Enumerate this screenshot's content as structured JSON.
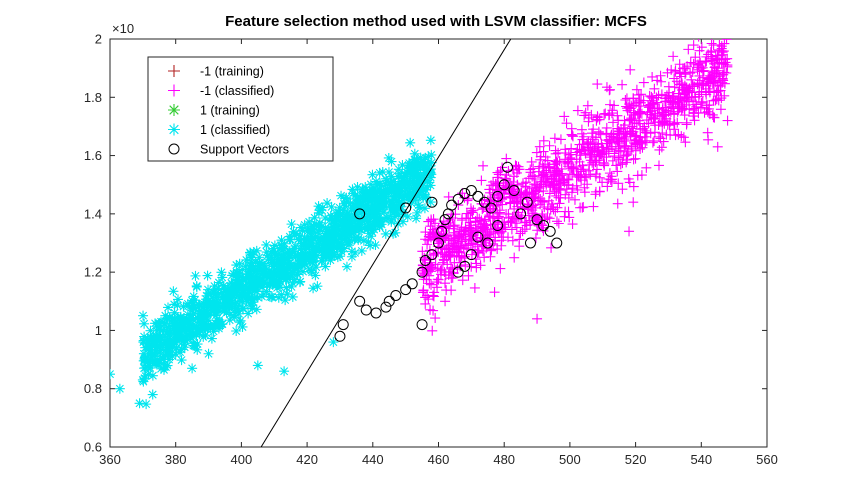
{
  "chart_data": {
    "type": "scatter",
    "title": "Feature selection method used with LSVM classifier: MCFS",
    "xlabel": "",
    "ylabel": "",
    "y_exponent_label": "×10",
    "xlim": [
      360,
      560
    ],
    "ylim": [
      0.6,
      2.0
    ],
    "xticks": [
      "360",
      "380",
      "400",
      "420",
      "440",
      "460",
      "480",
      "500",
      "520",
      "540",
      "560"
    ],
    "yticks": [
      "0.6",
      "0.8",
      "1",
      "1.2",
      "1.4",
      "1.6",
      "1.8",
      "2"
    ],
    "grid": false,
    "legend_position": "top-left",
    "series": [
      {
        "name": "-1 (training)",
        "marker": "plus",
        "color": "#B22222",
        "points": []
      },
      {
        "name": "-1 (classified)",
        "marker": "plus",
        "color": "#FF00FF",
        "cloud": {
          "x_range": [
            455,
            548
          ],
          "slope": 0.0072,
          "intercept": -2.05,
          "spread": 0.075,
          "count": 1300
        },
        "points": [
          [
            540,
            1.9
          ],
          [
            535,
            1.84
          ],
          [
            528,
            1.81
          ],
          [
            542,
            1.75
          ],
          [
            544,
            1.73
          ],
          [
            548,
            1.72
          ],
          [
            545,
            1.63
          ],
          [
            530,
            1.75
          ],
          [
            521,
            1.77
          ],
          [
            518,
            1.34
          ],
          [
            512,
            1.74
          ],
          [
            462,
            1.1
          ],
          [
            490,
            1.04
          ]
        ]
      },
      {
        "name": "1 (training)",
        "marker": "asterisk",
        "color": "#33CC33",
        "points": []
      },
      {
        "name": "1 (classified)",
        "marker": "asterisk",
        "color": "#00E5EE",
        "cloud": {
          "x_range": [
            370,
            458
          ],
          "slope": 0.0072,
          "intercept": -1.75,
          "spread": 0.05,
          "count": 1300
        },
        "points": [
          [
            360,
            0.85
          ],
          [
            363,
            0.8
          ],
          [
            369,
            0.75
          ],
          [
            373,
            0.78
          ],
          [
            372,
            0.88
          ],
          [
            374,
            0.98
          ],
          [
            378,
            0.9
          ],
          [
            370,
            0.83
          ],
          [
            385,
            0.87
          ],
          [
            390,
            0.92
          ],
          [
            405,
            0.88
          ],
          [
            413,
            0.86
          ],
          [
            416,
            1.22
          ],
          [
            428,
            0.96
          ],
          [
            403,
            1.25
          ],
          [
            432,
            1.44
          ],
          [
            442,
            1.46
          ],
          [
            448,
            1.48
          ]
        ]
      },
      {
        "name": "Support Vectors",
        "marker": "circle",
        "color": "#000000",
        "points": [
          [
            430,
            0.98
          ],
          [
            431,
            1.02
          ],
          [
            436,
            1.1
          ],
          [
            438,
            1.07
          ],
          [
            441,
            1.06
          ],
          [
            444,
            1.08
          ],
          [
            445,
            1.1
          ],
          [
            447,
            1.12
          ],
          [
            450,
            1.14
          ],
          [
            452,
            1.16
          ],
          [
            455,
            1.02
          ],
          [
            455,
            1.2
          ],
          [
            456,
            1.24
          ],
          [
            458,
            1.26
          ],
          [
            460,
            1.3
          ],
          [
            461,
            1.34
          ],
          [
            462,
            1.38
          ],
          [
            463,
            1.4
          ],
          [
            464,
            1.43
          ],
          [
            466,
            1.45
          ],
          [
            468,
            1.47
          ],
          [
            470,
            1.48
          ],
          [
            472,
            1.46
          ],
          [
            474,
            1.44
          ],
          [
            476,
            1.42
          ],
          [
            478,
            1.46
          ],
          [
            480,
            1.5
          ],
          [
            481,
            1.56
          ],
          [
            483,
            1.48
          ],
          [
            485,
            1.4
          ],
          [
            487,
            1.44
          ],
          [
            490,
            1.38
          ],
          [
            492,
            1.36
          ],
          [
            494,
            1.34
          ],
          [
            496,
            1.3
          ],
          [
            488,
            1.3
          ],
          [
            475,
            1.3
          ],
          [
            470,
            1.26
          ],
          [
            468,
            1.22
          ],
          [
            466,
            1.2
          ],
          [
            472,
            1.32
          ],
          [
            478,
            1.36
          ],
          [
            436,
            1.4
          ],
          [
            450,
            1.42
          ],
          [
            458,
            1.44
          ]
        ]
      }
    ],
    "decision_line": {
      "points": [
        [
          406,
          0.6
        ],
        [
          482,
          2.0
        ]
      ],
      "color": "#000000"
    }
  }
}
